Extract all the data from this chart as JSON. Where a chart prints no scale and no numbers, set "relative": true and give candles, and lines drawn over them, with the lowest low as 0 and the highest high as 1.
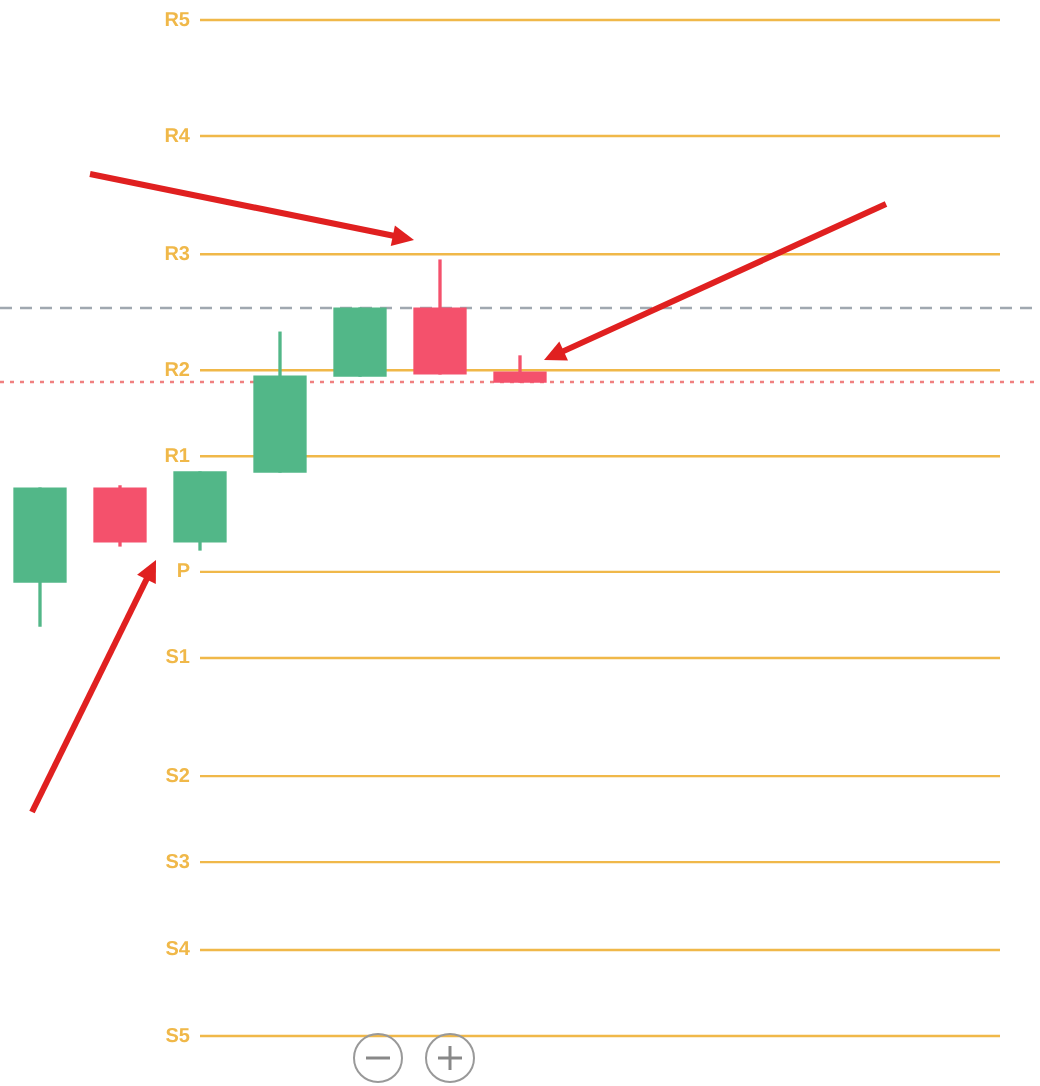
{
  "chart_data": {
    "type": "candlestick",
    "relative": true,
    "legend": false,
    "categories": [
      null,
      null,
      null,
      null,
      null,
      null,
      null
    ],
    "ohlc": [
      [
        0.12,
        0.377,
        0,
        0.377
      ],
      [
        0.377,
        0.383,
        0.219,
        0.23
      ],
      [
        0.23,
        0.421,
        0.208,
        0.421
      ],
      [
        0.421,
        0.803,
        0.421,
        0.683
      ],
      [
        0.683,
        0.869,
        0.683,
        0.869
      ],
      [
        0.869,
        1,
        0.689,
        0.689
      ],
      [
        0.694,
        0.738,
        0.667,
        0.667
      ]
    ],
    "colors": [
      "#52b788",
      "#f4516c",
      "#52b788",
      "#52b788",
      "#52b788",
      "#f4516c",
      "#f4516c"
    ],
    "ref_lines": [
      {
        "axis": "y",
        "value": 1.656,
        "label": "R5",
        "color": "#f0b849",
        "line_style": "solid"
      },
      {
        "axis": "y",
        "value": 1.339,
        "label": "R4",
        "color": "#f0b849",
        "line_style": "solid"
      },
      {
        "axis": "y",
        "value": 1.016,
        "label": "R3",
        "color": "#f0b849",
        "line_style": "solid"
      },
      {
        "axis": "y",
        "value": 0.699,
        "label": "R2",
        "color": "#f0b849",
        "line_style": "solid"
      },
      {
        "axis": "y",
        "value": 0.464,
        "label": "R1",
        "color": "#f0b849",
        "line_style": "solid"
      },
      {
        "axis": "y",
        "value": 0.148,
        "label": "P",
        "color": "#f0b849",
        "line_style": "solid"
      },
      {
        "axis": "y",
        "value": -0.087,
        "label": "S1",
        "color": "#f0b849",
        "line_style": "solid"
      },
      {
        "axis": "y",
        "value": -0.41,
        "label": "S2",
        "color": "#f0b849",
        "line_style": "solid"
      },
      {
        "axis": "y",
        "value": -0.645,
        "label": "S3",
        "color": "#f0b849",
        "line_style": "solid"
      },
      {
        "axis": "y",
        "value": -0.885,
        "label": "S4",
        "color": "#f0b849",
        "line_style": "solid"
      },
      {
        "axis": "y",
        "value": -1.12,
        "label": "S5",
        "color": "#f0b849",
        "line_style": "solid"
      },
      {
        "axis": "y",
        "value": 0.869,
        "color": "#a0a8b0",
        "line_style": "dashed"
      },
      {
        "axis": "y",
        "value": 0.667,
        "color": "#f08080",
        "line_style": "dotted"
      }
    ]
  }
}
